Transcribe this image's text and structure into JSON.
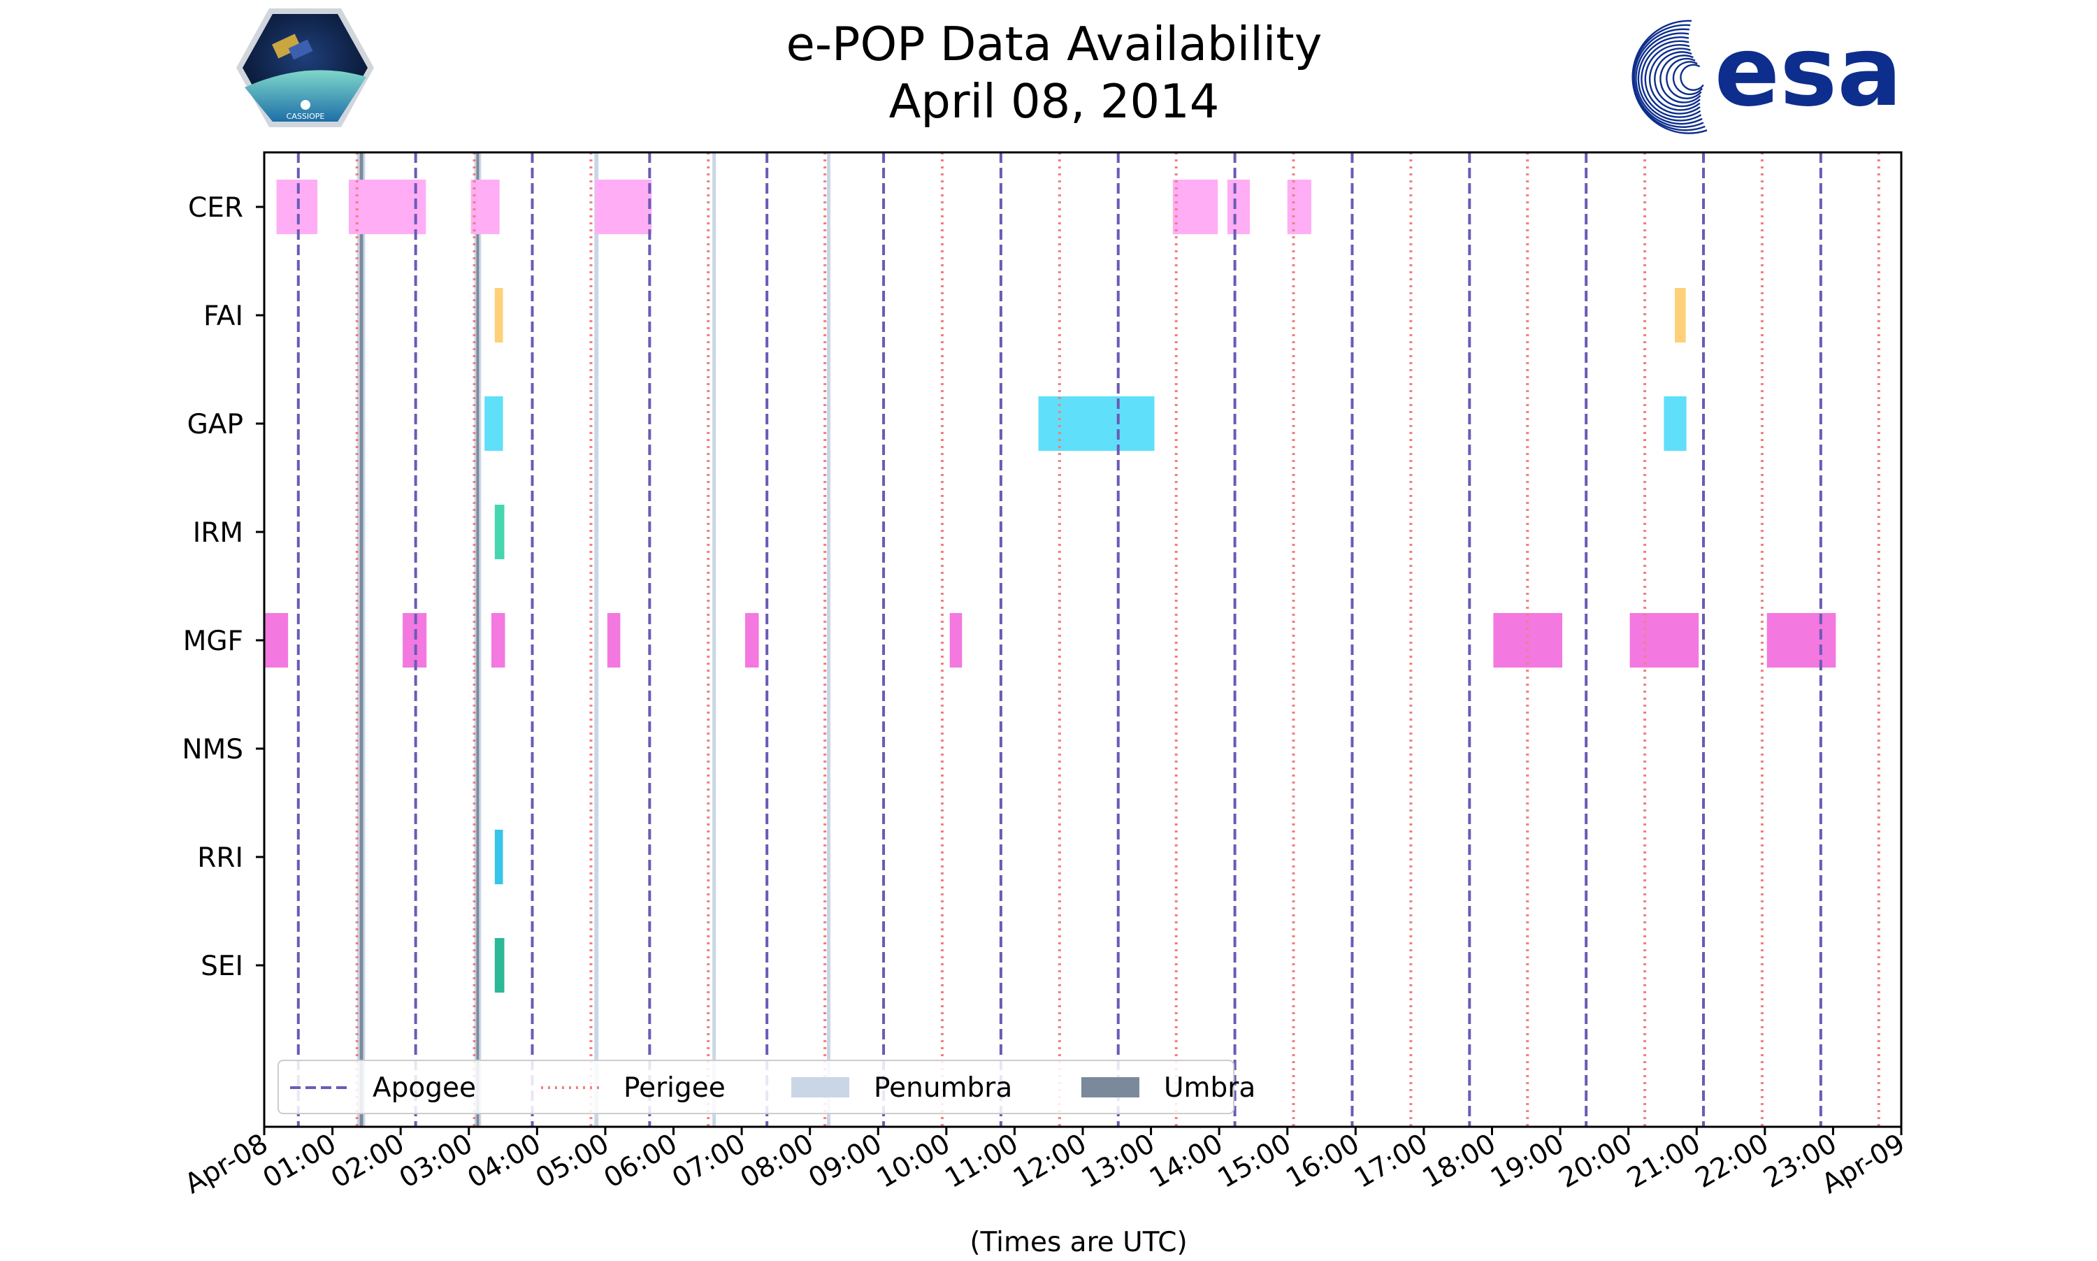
{
  "logos": {
    "left_text": "CASSIOPE",
    "right_text": "esa"
  },
  "colors": {
    "apogee": "#6b5bb5",
    "perigee": "#f08080",
    "penumbra": "#c9d6e6",
    "umbra": "#7b8a9b",
    "CER": "#ffadf5",
    "FAI": "#ffd07a",
    "GAP": "#5fdff9",
    "IRM": "#45d6b0",
    "MGF": "#f378e0",
    "RRI": "#36c5e8",
    "SEI": "#2bb897",
    "esa_blue": "#0d2e8c"
  },
  "chart_data": {
    "type": "timeline",
    "title": "e-POP Data Availability",
    "subtitle": "April 08, 2014",
    "xlabel": "(Times are UTC)",
    "xlim": [
      0,
      24
    ],
    "x_unit": "hours UTC",
    "x_ticks": [
      "Apr-08",
      "01:00",
      "02:00",
      "03:00",
      "04:00",
      "05:00",
      "06:00",
      "07:00",
      "08:00",
      "09:00",
      "10:00",
      "11:00",
      "12:00",
      "13:00",
      "14:00",
      "15:00",
      "16:00",
      "17:00",
      "18:00",
      "19:00",
      "20:00",
      "21:00",
      "22:00",
      "23:00",
      "Apr-09"
    ],
    "instruments": [
      "CER",
      "FAI",
      "GAP",
      "IRM",
      "MGF",
      "NMS",
      "RRI",
      "SEI"
    ],
    "legend": {
      "placement": "lower-left",
      "entries": [
        {
          "label": "Apogee",
          "style": "dashed"
        },
        {
          "label": "Perigee",
          "style": "dotted"
        },
        {
          "label": "Penumbra",
          "style": "patch-light"
        },
        {
          "label": "Umbra",
          "style": "patch-dark"
        }
      ]
    },
    "apogee_times": [
      0.5,
      2.22,
      3.93,
      5.65,
      7.37,
      9.08,
      10.8,
      12.52,
      14.23,
      15.95,
      17.67,
      19.38,
      21.1,
      22.82
    ],
    "perigee_times": [
      1.36,
      3.08,
      4.79,
      6.51,
      8.22,
      9.94,
      11.66,
      13.37,
      15.09,
      16.81,
      18.52,
      20.24,
      21.96,
      23.67
    ],
    "penumbra": [
      [
        1.36,
        1.48
      ],
      [
        3.08,
        3.18
      ],
      [
        4.84,
        4.9
      ],
      [
        6.57,
        6.62
      ],
      [
        8.25,
        8.3
      ]
    ],
    "umbra": [
      [
        1.4,
        1.45
      ],
      [
        3.11,
        3.15
      ]
    ],
    "segments": {
      "CER": [
        [
          0.18,
          0.78
        ],
        [
          1.24,
          2.37
        ],
        [
          3.03,
          3.45
        ],
        [
          4.85,
          5.68
        ],
        [
          13.32,
          13.98
        ],
        [
          14.12,
          14.45
        ],
        [
          15.0,
          15.35
        ]
      ],
      "FAI": [
        [
          3.38,
          3.5
        ],
        [
          20.68,
          20.84
        ]
      ],
      "GAP": [
        [
          3.23,
          3.5
        ],
        [
          11.35,
          13.05
        ],
        [
          20.52,
          20.85
        ]
      ],
      "IRM": [
        [
          3.38,
          3.52
        ]
      ],
      "MGF": [
        [
          0.0,
          0.35
        ],
        [
          2.03,
          2.38
        ],
        [
          3.33,
          3.53
        ],
        [
          5.03,
          5.22
        ],
        [
          7.05,
          7.25
        ],
        [
          10.05,
          10.23
        ],
        [
          18.02,
          19.03
        ],
        [
          20.02,
          21.03
        ],
        [
          22.03,
          23.04
        ]
      ],
      "NMS": [],
      "RRI": [
        [
          3.38,
          3.5
        ]
      ],
      "SEI": [
        [
          3.38,
          3.52
        ]
      ]
    }
  }
}
